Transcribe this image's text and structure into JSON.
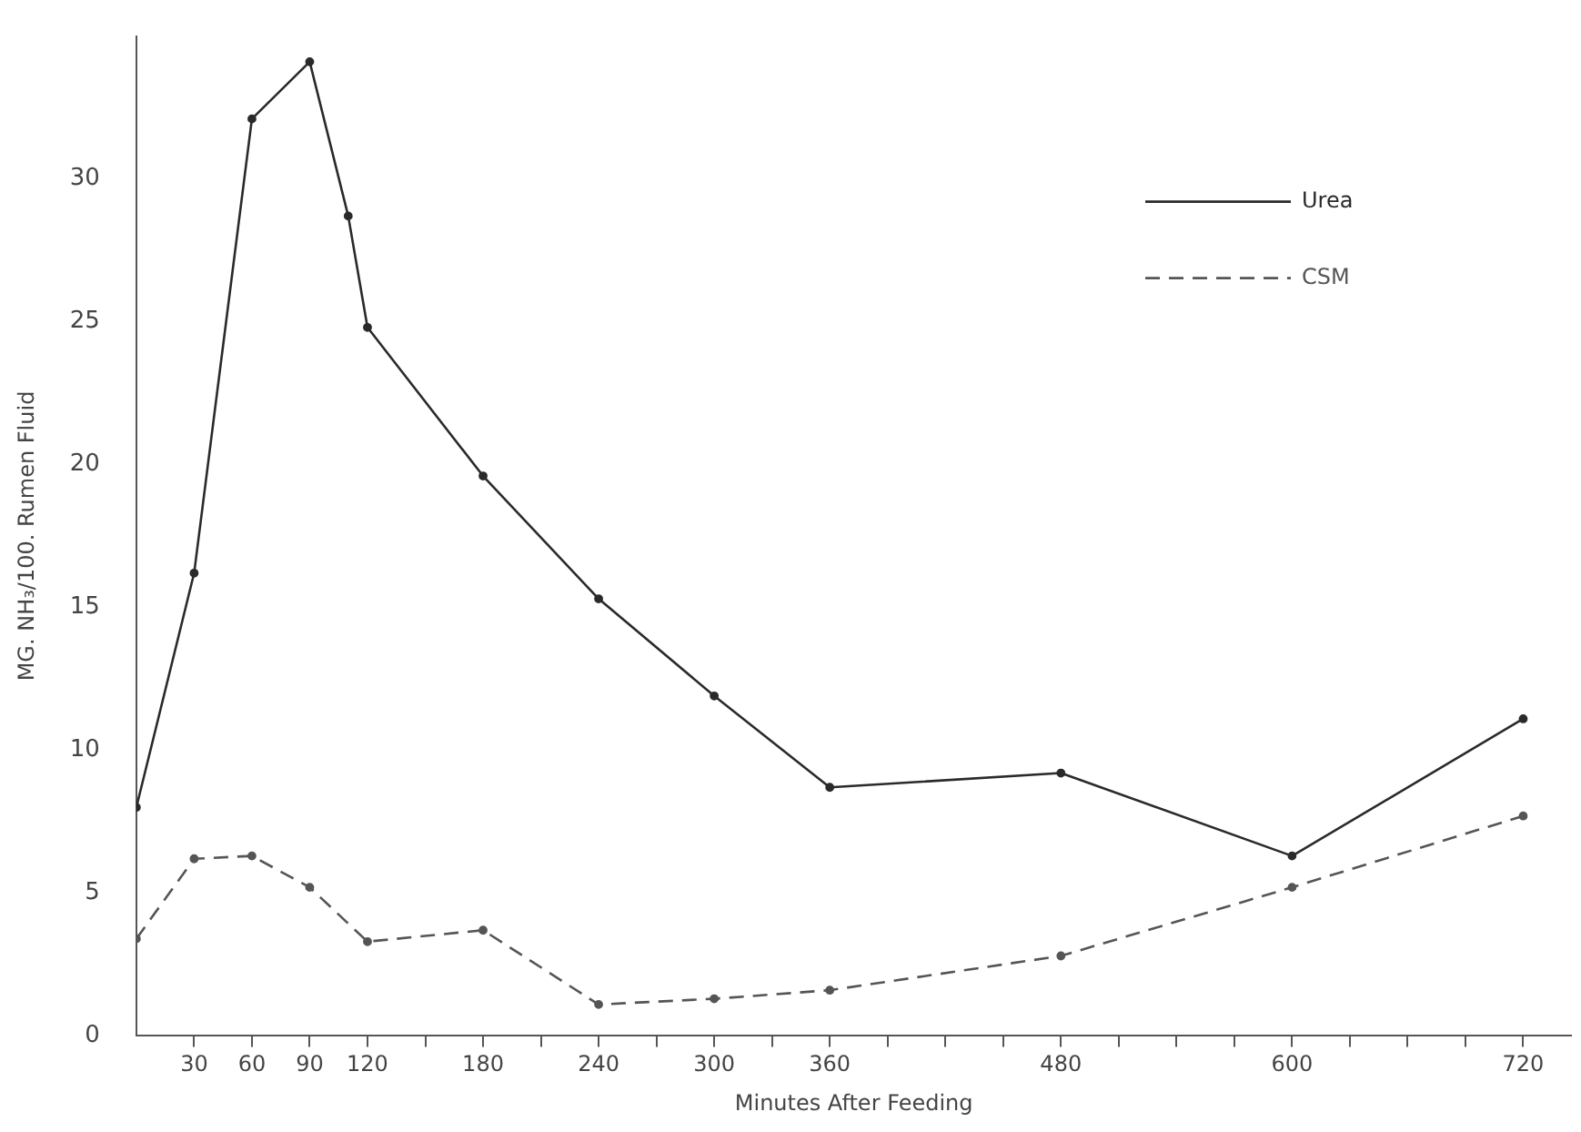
{
  "chart_data": {
    "type": "line",
    "xlabel": "Minutes After Feeding",
    "ylabel": "MG. NH₃/100. Rumen Fluid",
    "xlim": [
      0,
      745
    ],
    "ylim": [
      0,
      35
    ],
    "xticks": [
      30,
      60,
      90,
      120,
      {
        "value": 150,
        "label": null
      },
      180,
      {
        "value": 210,
        "label": null
      },
      240,
      {
        "value": 270,
        "label": null
      },
      300,
      {
        "value": 330,
        "label": null
      },
      360,
      {
        "value": 390,
        "label": null
      },
      {
        "value": 420,
        "label": null
      },
      {
        "value": 450,
        "label": null
      },
      480,
      {
        "value": 510,
        "label": null
      },
      {
        "value": 540,
        "label": null
      },
      {
        "value": 570,
        "label": null
      },
      600,
      {
        "value": 630,
        "label": null
      },
      {
        "value": 660,
        "label": null
      },
      {
        "value": 690,
        "label": null
      },
      720
    ],
    "yticks": [
      0,
      5,
      10,
      15,
      20,
      25,
      30
    ],
    "grid": false,
    "legend": "top right",
    "marker": "circle",
    "series": [
      {
        "name": "Urea",
        "color": "#2a2a2a",
        "line_style": "solid",
        "x": [
          0,
          30,
          60,
          90,
          110,
          120,
          180,
          240,
          300,
          360,
          480,
          600,
          720
        ],
        "values": [
          8.0,
          16.2,
          32.1,
          34.1,
          28.7,
          24.8,
          19.6,
          15.3,
          11.9,
          8.7,
          9.2,
          6.3,
          11.1
        ]
      },
      {
        "name": "CSM",
        "color": "#555555",
        "line_style": "dashed",
        "x": [
          0,
          30,
          60,
          90,
          120,
          180,
          240,
          300,
          360,
          480,
          600,
          720
        ],
        "values": [
          3.4,
          6.2,
          6.3,
          5.2,
          3.3,
          3.7,
          1.1,
          1.3,
          1.6,
          2.8,
          5.2,
          7.7
        ]
      }
    ]
  }
}
